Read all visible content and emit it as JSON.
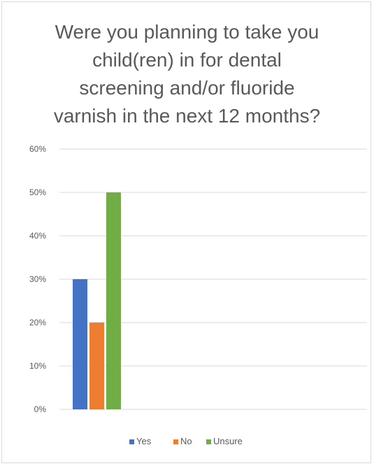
{
  "chart_data": {
    "type": "bar",
    "title_lines": [
      "Were you planning to take you",
      "child(ren) in for dental",
      "screening and/or fluoride",
      "varnish in the next 12 months?"
    ],
    "xlabel": "",
    "ylabel": "",
    "ylim": [
      0,
      0.6
    ],
    "y_ticks": [
      0,
      0.1,
      0.2,
      0.3,
      0.4,
      0.5,
      0.6
    ],
    "y_tick_labels": [
      "0%",
      "10%",
      "20%",
      "30%",
      "40%",
      "50%",
      "60%"
    ],
    "grid": true,
    "legend_position": "bottom",
    "series": [
      {
        "name": "Yes",
        "color": "#4472c4",
        "value": 0.3
      },
      {
        "name": "No",
        "color": "#ed7d31",
        "value": 0.2
      },
      {
        "name": "Unsure",
        "color": "#70ad47",
        "value": 0.5
      }
    ]
  }
}
